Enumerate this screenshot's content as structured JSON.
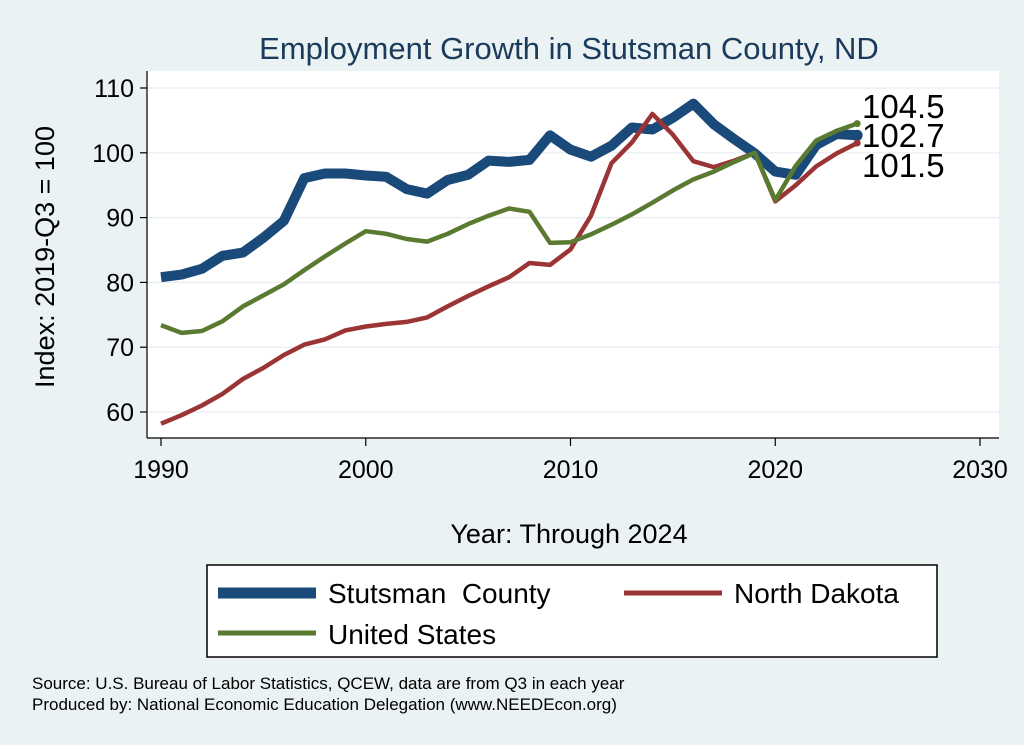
{
  "chart_data": {
    "type": "line",
    "title": "Employment Growth in Stutsman County, ND",
    "xlabel": "Year: Through 2024",
    "ylabel": "Index: 2019-Q3 = 100",
    "xlim": [
      1990,
      2030
    ],
    "ylim": [
      55,
      112
    ],
    "xticks": [
      1990,
      2000,
      2010,
      2020,
      2030
    ],
    "yticks": [
      60,
      70,
      80,
      90,
      100,
      110
    ],
    "grid": true,
    "legend_position": "bottom",
    "series": [
      {
        "name": "Stutsman  County",
        "color": "#1a4a7a",
        "x": [
          1990,
          1991,
          1992,
          1993,
          1994,
          1995,
          1996,
          1997,
          1998,
          1999,
          2000,
          2001,
          2002,
          2003,
          2004,
          2005,
          2006,
          2007,
          2008,
          2009,
          2010,
          2011,
          2012,
          2013,
          2014,
          2015,
          2016,
          2017,
          2018,
          2019,
          2020,
          2021,
          2022,
          2023,
          2024
        ],
        "values": [
          80.8,
          81.2,
          82.1,
          84.1,
          84.6,
          86.9,
          89.5,
          96.1,
          96.8,
          96.8,
          96.5,
          96.3,
          94.4,
          93.7,
          95.8,
          96.6,
          98.8,
          98.6,
          98.9,
          102.7,
          100.5,
          99.4,
          101.1,
          103.9,
          103.6,
          105.4,
          107.6,
          104.4,
          102.1,
          99.9,
          97.1,
          96.6,
          101.2,
          102.9,
          102.7
        ],
        "end_label": "102.7"
      },
      {
        "name": "North Dakota",
        "color": "#9b3535",
        "x": [
          1990,
          1991,
          1992,
          1993,
          1994,
          1995,
          1996,
          1997,
          1998,
          1999,
          2000,
          2001,
          2002,
          2003,
          2004,
          2005,
          2006,
          2007,
          2008,
          2009,
          2010,
          2011,
          2012,
          2013,
          2014,
          2015,
          2016,
          2017,
          2018,
          2019,
          2020,
          2021,
          2022,
          2023,
          2024
        ],
        "values": [
          58.2,
          59.5,
          61.0,
          62.8,
          65.1,
          66.8,
          68.8,
          70.4,
          71.2,
          72.6,
          73.2,
          73.6,
          73.9,
          74.6,
          76.3,
          77.9,
          79.4,
          80.8,
          83.0,
          82.7,
          85.1,
          90.3,
          98.4,
          101.6,
          106.0,
          102.8,
          98.7,
          97.8,
          98.8,
          100.0,
          92.5,
          95.0,
          97.9,
          99.9,
          101.5
        ],
        "end_label": "101.5"
      },
      {
        "name": "United States",
        "color": "#5a7a32",
        "x": [
          1990,
          1991,
          1992,
          1993,
          1994,
          1995,
          1996,
          1997,
          1998,
          1999,
          2000,
          2001,
          2002,
          2003,
          2004,
          2005,
          2006,
          2007,
          2008,
          2009,
          2010,
          2011,
          2012,
          2013,
          2014,
          2015,
          2016,
          2017,
          2018,
          2019,
          2020,
          2021,
          2022,
          2023,
          2024
        ],
        "values": [
          73.4,
          72.2,
          72.5,
          74.0,
          76.3,
          78.0,
          79.7,
          81.9,
          84.0,
          86.0,
          87.9,
          87.5,
          86.7,
          86.3,
          87.5,
          89.0,
          90.3,
          91.4,
          90.9,
          86.1,
          86.2,
          87.4,
          88.9,
          90.5,
          92.3,
          94.2,
          95.9,
          97.1,
          98.6,
          100.0,
          92.7,
          98.0,
          101.9,
          103.4,
          104.5
        ],
        "end_label": "104.5"
      }
    ]
  },
  "footer": {
    "source": "Source: U.S. Bureau of Labor Statistics, QCEW, data are from Q3 in each year",
    "produced_by": "Produced by: National Economic Education Delegation (www.NEEDEcon.org)"
  }
}
